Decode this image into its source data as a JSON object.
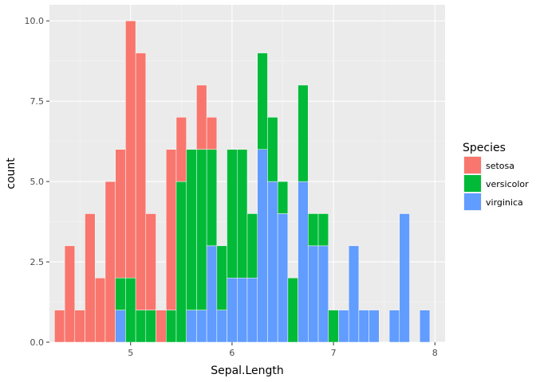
{
  "chart_data": {
    "type": "bar",
    "subtype": "stacked-histogram",
    "title": "",
    "xlabel": "Sepal.Length",
    "ylabel": "count",
    "xlim": [
      4.2,
      8.1
    ],
    "ylim": [
      0,
      10.5
    ],
    "x_ticks": [
      {
        "value": 5,
        "label": "5"
      },
      {
        "value": 6,
        "label": "6"
      },
      {
        "value": 7,
        "label": "7"
      },
      {
        "value": 8,
        "label": "8"
      }
    ],
    "y_ticks": [
      {
        "value": 0,
        "label": "0.0"
      },
      {
        "value": 2.5,
        "label": "2.5"
      },
      {
        "value": 5,
        "label": "5.0"
      },
      {
        "value": 7.5,
        "label": "7.5"
      },
      {
        "value": 10,
        "label": "10.0"
      }
    ],
    "grid": true,
    "legend": {
      "title": "Species",
      "placement": "right"
    },
    "x": [
      4.3,
      4.4,
      4.5,
      4.6,
      4.7,
      4.8,
      4.9,
      5.0,
      5.1,
      5.2,
      5.3,
      5.4,
      5.5,
      5.6,
      5.7,
      5.8,
      5.9,
      6.0,
      6.1,
      6.2,
      6.3,
      6.4,
      6.5,
      6.6,
      6.7,
      6.8,
      6.9,
      7.0,
      7.1,
      7.2,
      7.3,
      7.4,
      7.6,
      7.7,
      7.9
    ],
    "series": [
      {
        "name": "setosa",
        "color": "#F8766D",
        "values": [
          1,
          3,
          1,
          4,
          2,
          5,
          4,
          8,
          8,
          3,
          1,
          5,
          2,
          0,
          2,
          1,
          0,
          0,
          0,
          0,
          0,
          0,
          0,
          0,
          0,
          0,
          0,
          0,
          0,
          0,
          0,
          0,
          0,
          0,
          0
        ]
      },
      {
        "name": "versicolor",
        "color": "#00BA38",
        "values": [
          0,
          0,
          0,
          0,
          0,
          0,
          1,
          2,
          1,
          1,
          0,
          1,
          5,
          5,
          5,
          3,
          2,
          4,
          4,
          2,
          3,
          2,
          1,
          2,
          3,
          1,
          1,
          1,
          0,
          0,
          0,
          0,
          0,
          0,
          0
        ]
      },
      {
        "name": "virginica",
        "color": "#619CFF",
        "values": [
          0,
          0,
          0,
          0,
          0,
          0,
          1,
          0,
          0,
          0,
          0,
          0,
          0,
          1,
          1,
          3,
          1,
          2,
          2,
          2,
          6,
          5,
          4,
          0,
          5,
          3,
          3,
          0,
          1,
          3,
          1,
          1,
          1,
          4,
          1
        ]
      }
    ]
  }
}
